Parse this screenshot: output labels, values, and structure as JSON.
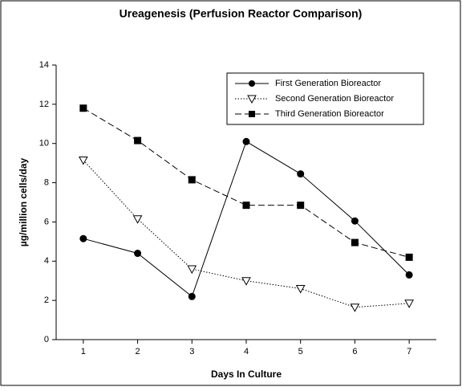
{
  "chart_data": {
    "type": "line",
    "title": "Ureagenesis (Perfusion Reactor Comparison)",
    "x_label": "Days In Culture",
    "y_label": "µg/million cells/day",
    "x": [
      1,
      2,
      3,
      4,
      5,
      6,
      7
    ],
    "series": [
      {
        "name": "First Generation Bioreactor",
        "color": "#000000",
        "marker": "circle",
        "linestyle": "solid",
        "values": [
          5.15,
          4.4,
          2.2,
          10.1,
          8.45,
          6.05,
          3.3
        ]
      },
      {
        "name": "Second Generation Bioreactor",
        "color": "#000000",
        "marker": "triangle-down",
        "linestyle": "dotted",
        "values": [
          9.15,
          6.15,
          3.6,
          3.0,
          2.6,
          1.65,
          1.85
        ]
      },
      {
        "name": "Third Generation Bioreactor",
        "color": "#000000",
        "marker": "square",
        "linestyle": "dashed",
        "values": [
          11.8,
          10.15,
          8.15,
          6.85,
          6.85,
          4.95,
          4.2
        ]
      }
    ],
    "xlim": [
      0.5,
      7.5
    ],
    "xticks": [
      1,
      2,
      3,
      4,
      5,
      6,
      7
    ],
    "ylim": [
      0,
      14
    ],
    "yticks": [
      0,
      2,
      4,
      6,
      8,
      10,
      12,
      14
    ],
    "legend": "upper right",
    "grid": false
  }
}
